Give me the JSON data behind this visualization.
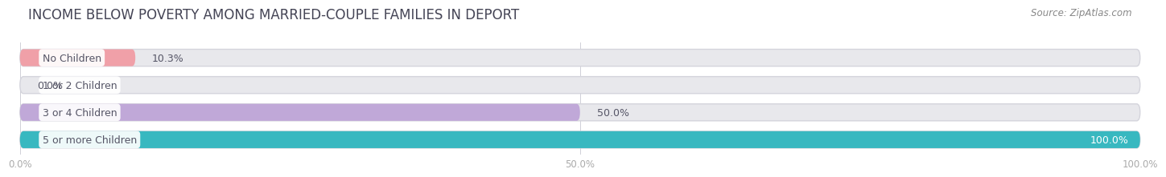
{
  "title": "INCOME BELOW POVERTY AMONG MARRIED-COUPLE FAMILIES IN DEPORT",
  "source": "Source: ZipAtlas.com",
  "categories": [
    "No Children",
    "1 or 2 Children",
    "3 or 4 Children",
    "5 or more Children"
  ],
  "values": [
    10.3,
    0.0,
    50.0,
    100.0
  ],
  "value_labels": [
    "10.3%",
    "0.0%",
    "50.0%",
    "100.0%"
  ],
  "bar_colors": [
    "#f0a0a8",
    "#a8b8e8",
    "#c0a8d8",
    "#38b8c0"
  ],
  "bar_bg_color": "#e8e8ec",
  "xlim": [
    0,
    100
  ],
  "xticks": [
    0.0,
    50.0,
    100.0
  ],
  "xtick_labels": [
    "0.0%",
    "50.0%",
    "100.0%"
  ],
  "title_fontsize": 12,
  "source_fontsize": 8.5,
  "label_fontsize": 9,
  "value_fontsize": 9,
  "tick_fontsize": 8.5,
  "background_color": "#ffffff",
  "label_text_color": "#555566",
  "value_text_color": "#555566",
  "value_inside_color": "#ffffff"
}
